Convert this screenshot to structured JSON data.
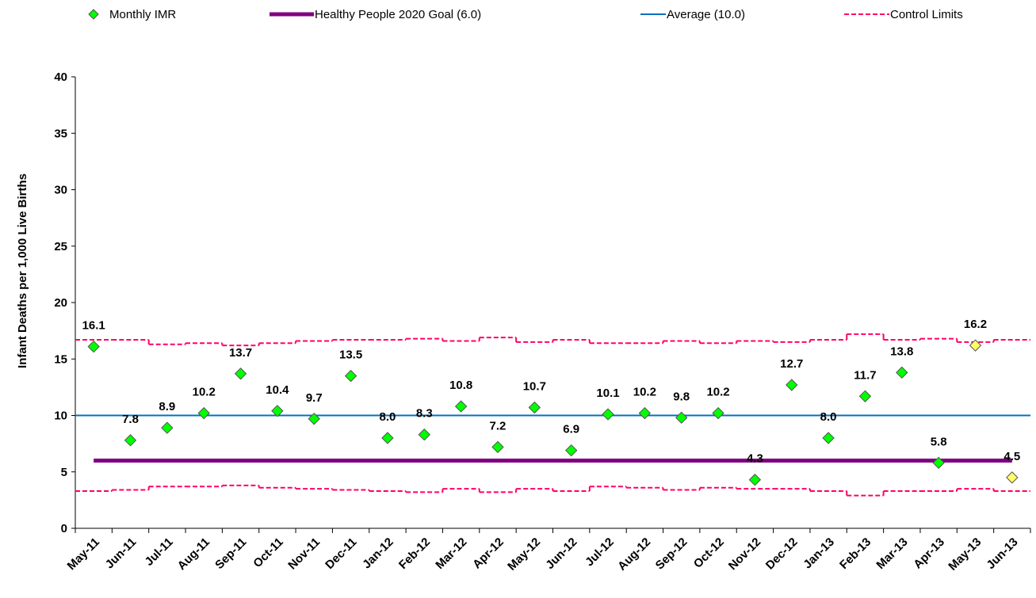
{
  "chart_data": {
    "type": "control",
    "y_label": "Infant Deaths  per 1,000 Live Births",
    "categories": [
      "May-11",
      "Jun-11",
      "Jul-11",
      "Aug-11",
      "Sep-11",
      "Oct-11",
      "Nov-11",
      "Dec-11",
      "Jan-12",
      "Feb-12",
      "Mar-12",
      "Apr-12",
      "May-12",
      "Jun-12",
      "Jul-12",
      "Aug-12",
      "Sep-12",
      "Oct-12",
      "Nov-12",
      "Dec-12",
      "Jan-13",
      "Feb-13",
      "Mar-13",
      "Apr-13",
      "May-13",
      "Jun-13"
    ],
    "series": [
      {
        "name": "Monthly IMR",
        "color": "#00ff00",
        "point_colors": [
          "#00ff00",
          "#00ff00",
          "#00ff00",
          "#00ff00",
          "#00ff00",
          "#00ff00",
          "#00ff00",
          "#00ff00",
          "#00ff00",
          "#00ff00",
          "#00ff00",
          "#00ff00",
          "#00ff00",
          "#00ff00",
          "#00ff00",
          "#00ff00",
          "#00ff00",
          "#00ff00",
          "#00ff00",
          "#00ff00",
          "#00ff00",
          "#00ff00",
          "#00ff00",
          "#00ff00",
          "#ffff66",
          "#ffff66"
        ],
        "values": [
          16.1,
          7.8,
          8.9,
          10.2,
          13.7,
          10.4,
          9.7,
          13.5,
          8,
          8.3,
          10.8,
          7.2,
          10.7,
          6.9,
          10.1,
          10.2,
          9.8,
          10.2,
          4.3,
          12.7,
          8,
          11.7,
          13.8,
          5.8,
          16.2,
          4.5
        ],
        "value_labels": [
          "16.1",
          "7.8",
          "8.9",
          "10.2",
          "13.7",
          "10.4",
          "9.7",
          "13.5",
          "8.0",
          "8.3",
          "10.8",
          "7.2",
          "10.7",
          "6.9",
          "10.1",
          "10.2",
          "9.8",
          "10.2",
          "4.3",
          "12.7",
          "8.0",
          "11.7",
          "13.8",
          "5.8",
          "16.2",
          "4.5"
        ]
      },
      {
        "name": "Healthy People 2020 Goal (6.0)",
        "color": "#800080",
        "value": 6
      },
      {
        "name": "Average (10.0)",
        "color": "#0070c0",
        "value": 10
      },
      {
        "name": "Control Limits",
        "color": "#ff0066",
        "upper": [
          16.7,
          16.7,
          16.3,
          16.4,
          16.2,
          16.4,
          16.6,
          16.7,
          16.7,
          16.8,
          16.6,
          16.9,
          16.5,
          16.7,
          16.4,
          16.4,
          16.6,
          16.4,
          16.6,
          16.5,
          16.7,
          17.2,
          16.7,
          16.8,
          16.5,
          16.7
        ],
        "lower": [
          3.3,
          3.4,
          3.7,
          3.7,
          3.8,
          3.6,
          3.5,
          3.4,
          3.3,
          3.2,
          3.5,
          3.2,
          3.5,
          3.3,
          3.7,
          3.6,
          3.4,
          3.6,
          3.5,
          3.5,
          3.3,
          2.9,
          3.3,
          3.3,
          3.5,
          3.3
        ]
      }
    ],
    "ylim": [
      0,
      40
    ],
    "yticks": [
      0,
      5,
      10,
      15,
      20,
      25,
      30,
      35,
      40
    ]
  }
}
